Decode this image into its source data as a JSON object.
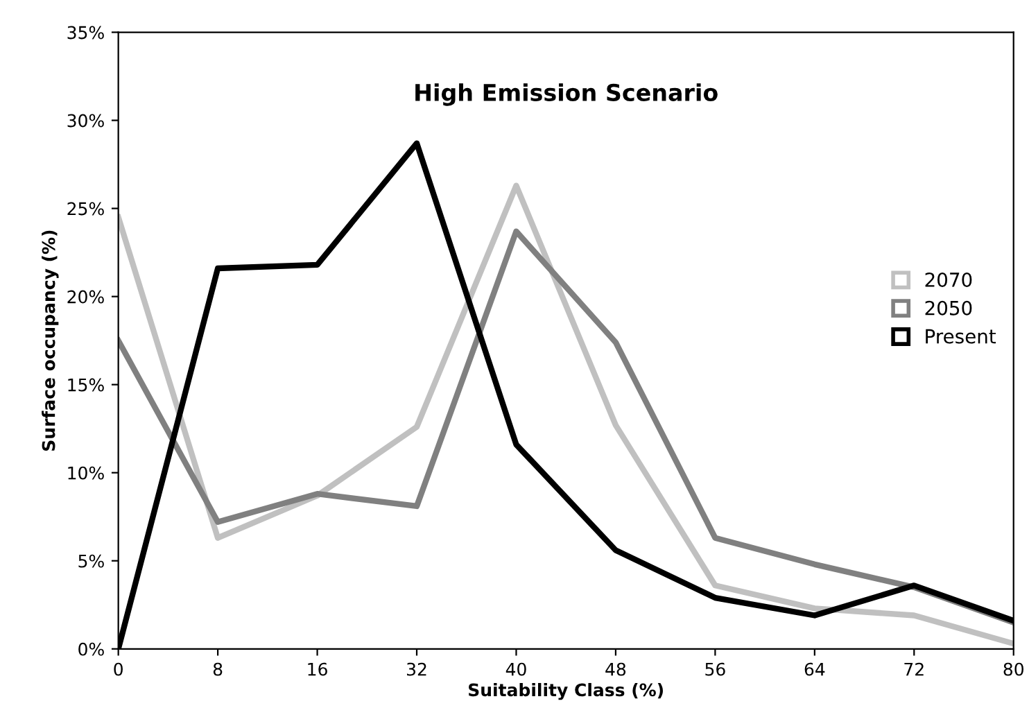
{
  "chart_data": {
    "type": "line",
    "title": "High Emission Scenario",
    "xlabel": "Suitability Class (%)",
    "ylabel": "Surface occupancy (%)",
    "categories": [
      "0",
      "8",
      "16",
      "32",
      "40",
      "48",
      "56",
      "64",
      "72",
      "80"
    ],
    "series": [
      {
        "name": "2070",
        "color": "#c0c0c0",
        "values": [
          24.5,
          6.3,
          8.7,
          12.6,
          26.3,
          12.7,
          3.6,
          2.3,
          1.9,
          0.3
        ]
      },
      {
        "name": "2050",
        "color": "#808080",
        "values": [
          17.5,
          7.2,
          8.8,
          8.1,
          23.7,
          17.4,
          6.3,
          4.8,
          3.5,
          1.5
        ]
      },
      {
        "name": "Present",
        "color": "#000000",
        "values": [
          0,
          21.6,
          21.8,
          28.7,
          11.6,
          5.6,
          2.9,
          1.9,
          3.6,
          1.6
        ]
      }
    ],
    "ylim": [
      0,
      35
    ],
    "yticks": [
      {
        "value": 0,
        "label": "0%"
      },
      {
        "value": 5,
        "label": "5%"
      },
      {
        "value": 10,
        "label": "10%"
      },
      {
        "value": 15,
        "label": "15%"
      },
      {
        "value": 20,
        "label": "20%"
      },
      {
        "value": 25,
        "label": "25%"
      },
      {
        "value": 30,
        "label": "30%"
      },
      {
        "value": 35,
        "label": "35%"
      }
    ],
    "grid": false,
    "legend": "right",
    "marker": "none",
    "line_style": "solid"
  }
}
